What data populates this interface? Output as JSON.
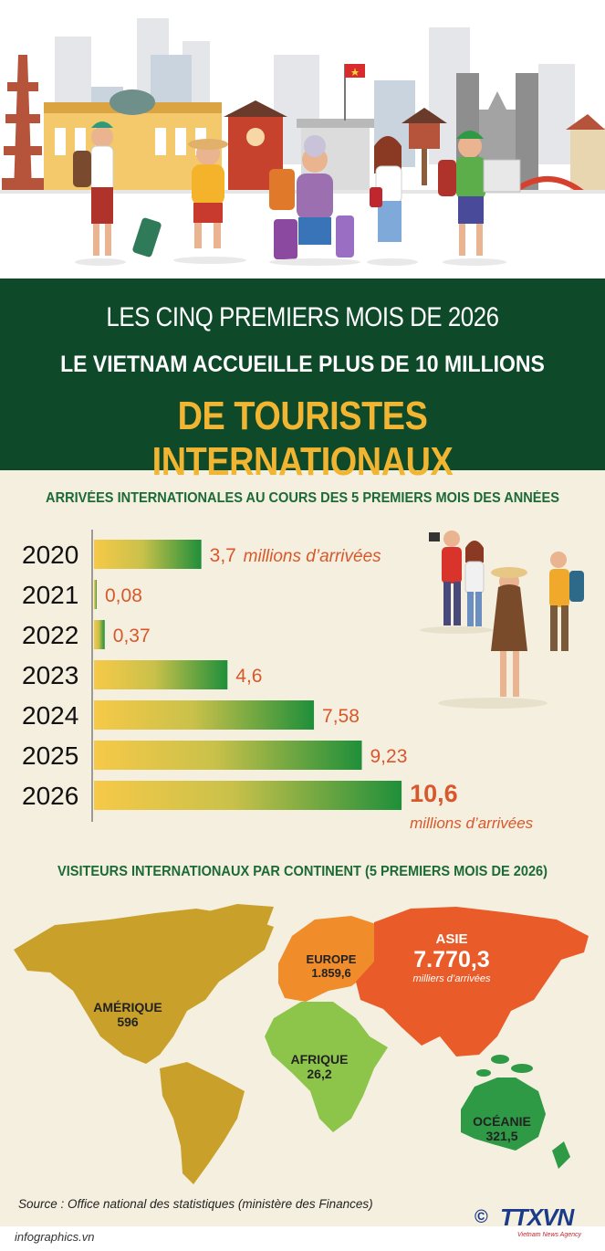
{
  "header": {
    "line1": "LES CINQ PREMIERS MOIS DE 2026",
    "line2": "LE VIETNAM ACCUEILLE PLUS DE 10 MILLIONS",
    "line3": "DE TOURISTES INTERNATIONAUX"
  },
  "chart_data": {
    "type": "bar",
    "title": "ARRIVÉES INTERNATIONALES AU COURS DES 5 PREMIERS MOIS DES ANNÉES",
    "categories": [
      "2020",
      "2021",
      "2022",
      "2023",
      "2024",
      "2025",
      "2026"
    ],
    "values": [
      3.7,
      0.08,
      0.37,
      4.6,
      7.58,
      9.23,
      10.6
    ],
    "value_labels": [
      "3,7",
      "0,08",
      "0,37",
      "4,6",
      "7,58",
      "9,23",
      "10,6"
    ],
    "unit_label_first": "millions d’arrivées",
    "unit_label_last": "millions d’arrivées",
    "orientation": "horizontal",
    "colors": {
      "start": "#f7c948",
      "end": "#1f8f3a",
      "label": "#d9582b"
    }
  },
  "map": {
    "title": "VISITEURS INTERNATIONAUX PAR CONTINENT (5 PREMIERS MOIS DE 2026)",
    "regions": [
      {
        "name": "AMÉRIQUE",
        "value": "596",
        "color": "#c9a12a"
      },
      {
        "name": "EUROPE",
        "value": "1.859,6",
        "color": "#f08c2a"
      },
      {
        "name": "ASIE",
        "value": "7.770,3",
        "unit": "milliers d’arrivées",
        "color": "#e95c2a"
      },
      {
        "name": "AFRIQUE",
        "value": "26,2",
        "color": "#8cc54a"
      },
      {
        "name": "OCÉANIE",
        "value": "321,5",
        "color": "#2e9a45"
      }
    ]
  },
  "footer": {
    "source": "Source : Office national des statistiques (ministère des Finances)",
    "site": "infographics.vn",
    "copyright": "©",
    "logo": "TTXVN",
    "logo_sub": "Vietnam News Agency"
  }
}
